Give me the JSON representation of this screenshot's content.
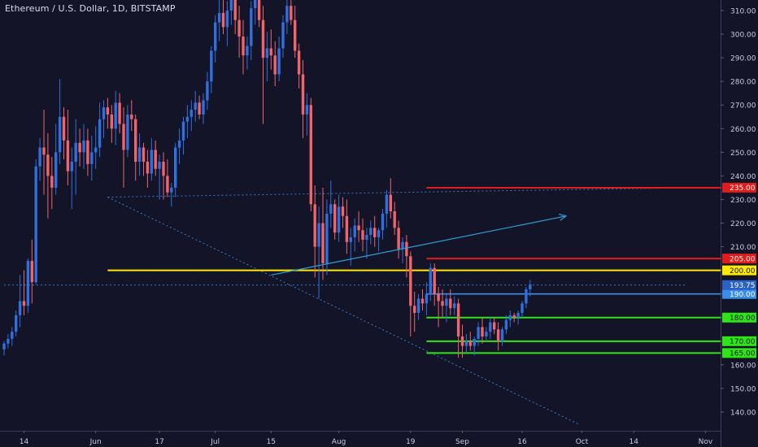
{
  "header": {
    "title": "Ethereum / U.S. Dollar, 1D, BITSTAMP"
  },
  "colors": {
    "background": "#131428",
    "up_candle": "#2f6fde",
    "down_candle": "#f0646a",
    "axis_text": "#c9ccd9",
    "red_level": "#e21b1b",
    "yellow_level": "#ffea00",
    "green_level": "#2ee615",
    "blue_level": "#3a8eea",
    "trend_arrow": "#2d9fd8"
  },
  "chart_data": {
    "type": "candlestick",
    "title": "Ethereum / U.S. Dollar, 1D, BITSTAMP",
    "y_axis": {
      "range": [
        135,
        314
      ],
      "ticks": [
        140,
        150,
        160,
        170,
        180,
        190,
        200,
        210,
        220,
        230,
        240,
        250,
        260,
        270,
        280,
        290,
        300,
        310
      ],
      "tick_labels": [
        "140.00",
        "150.00",
        "160.00",
        "170.00",
        "180.00",
        "190.00",
        "200.00",
        "210.00",
        "220.00",
        "230.00",
        "240.00",
        "250.00",
        "260.00",
        "270.00",
        "280.00",
        "290.00",
        "300.00",
        "310.00"
      ]
    },
    "x_axis": {
      "start_date": "2019-05-09",
      "end_date": "2019-11-05",
      "ticks": [
        {
          "date": "2019-05-14",
          "label": "14"
        },
        {
          "date": "2019-06-01",
          "label": "Jun"
        },
        {
          "date": "2019-06-17",
          "label": "17"
        },
        {
          "date": "2019-07-01",
          "label": "Jul"
        },
        {
          "date": "2019-07-15",
          "label": "15"
        },
        {
          "date": "2019-08-01",
          "label": "Aug"
        },
        {
          "date": "2019-08-19",
          "label": "19"
        },
        {
          "date": "2019-09-01",
          "label": "Sep"
        },
        {
          "date": "2019-09-16",
          "label": "16"
        },
        {
          "date": "2019-10-01",
          "label": "Oct"
        },
        {
          "date": "2019-10-14",
          "label": "14"
        },
        {
          "date": "2019-11-01",
          "label": "Nov"
        }
      ]
    },
    "candles_start_date": "2019-05-09",
    "candles": [
      [
        166.5,
        170,
        164,
        169
      ],
      [
        169,
        173,
        167,
        171
      ],
      [
        171,
        176,
        168,
        174
      ],
      [
        174,
        183,
        172,
        181
      ],
      [
        181,
        198,
        176,
        187
      ],
      [
        187,
        200,
        181,
        185
      ],
      [
        185,
        205,
        182,
        204
      ],
      [
        204,
        213,
        186,
        195
      ],
      [
        195,
        247,
        194,
        244
      ],
      [
        244,
        256,
        238,
        252
      ],
      [
        252,
        268,
        232,
        249
      ],
      [
        249,
        258,
        222,
        240
      ],
      [
        240,
        248,
        226,
        235
      ],
      [
        235,
        262,
        232,
        250
      ],
      [
        250,
        281,
        245,
        265
      ],
      [
        265,
        269,
        247,
        255
      ],
      [
        255,
        268,
        236,
        242
      ],
      [
        242,
        252,
        226,
        246
      ],
      [
        246,
        264,
        232,
        254
      ],
      [
        254,
        260,
        244,
        250
      ],
      [
        250,
        262,
        243,
        255
      ],
      [
        255,
        260,
        240,
        245
      ],
      [
        245,
        257,
        238,
        250
      ],
      [
        250,
        261,
        243,
        252
      ],
      [
        252,
        271,
        248,
        264
      ],
      [
        264,
        272,
        256,
        269
      ],
      [
        269,
        273,
        260,
        266
      ],
      [
        266,
        270,
        254,
        260
      ],
      [
        260,
        276,
        253,
        271
      ],
      [
        271,
        275,
        258,
        262
      ],
      [
        262,
        269,
        235,
        251
      ],
      [
        251,
        270,
        248,
        266
      ],
      [
        266,
        272,
        259,
        264
      ],
      [
        264,
        266,
        238,
        246
      ],
      [
        246,
        258,
        240,
        252
      ],
      [
        252,
        254,
        240,
        246
      ],
      [
        246,
        251,
        235,
        241
      ],
      [
        241,
        256,
        238,
        251
      ],
      [
        251,
        255,
        240,
        243
      ],
      [
        243,
        249,
        230,
        246
      ],
      [
        246,
        250,
        230,
        240
      ],
      [
        240,
        247,
        231,
        233
      ],
      [
        233,
        237,
        227,
        235
      ],
      [
        235,
        254,
        231,
        252
      ],
      [
        252,
        260,
        245,
        255
      ],
      [
        255,
        265,
        249,
        263
      ],
      [
        263,
        270,
        256,
        265
      ],
      [
        265,
        272,
        259,
        268
      ],
      [
        268,
        276,
        263,
        271
      ],
      [
        271,
        274,
        264,
        266
      ],
      [
        266,
        275,
        262,
        272
      ],
      [
        272,
        284,
        268,
        280
      ],
      [
        280,
        295,
        275,
        293
      ],
      [
        293,
        308,
        288,
        305
      ],
      [
        305,
        318,
        297,
        309
      ],
      [
        309,
        320,
        300,
        303
      ],
      [
        303,
        314,
        295,
        310
      ],
      [
        310,
        320,
        304,
        316
      ],
      [
        316,
        319,
        300,
        306
      ],
      [
        306,
        312,
        290,
        299
      ],
      [
        299,
        306,
        283,
        291
      ],
      [
        291,
        299,
        285,
        295
      ],
      [
        295,
        314,
        289,
        311
      ],
      [
        311,
        320,
        304,
        317
      ],
      [
        317,
        323,
        303,
        306
      ],
      [
        306,
        312,
        262,
        290
      ],
      [
        290,
        301,
        280,
        294
      ],
      [
        294,
        302,
        285,
        291
      ],
      [
        291,
        297,
        278,
        283
      ],
      [
        283,
        299,
        280,
        294
      ],
      [
        294,
        308,
        290,
        305
      ],
      [
        305,
        316,
        300,
        312
      ],
      [
        312,
        320,
        304,
        306
      ],
      [
        306,
        312,
        290,
        293
      ],
      [
        293,
        296,
        277,
        283
      ],
      [
        283,
        289,
        256,
        266
      ],
      [
        266,
        275,
        257,
        270
      ],
      [
        270,
        273,
        225,
        228
      ],
      [
        228,
        236,
        197,
        210
      ],
      [
        210,
        227,
        188,
        220
      ],
      [
        220,
        235,
        196,
        203
      ],
      [
        203,
        230,
        198,
        224
      ],
      [
        224,
        238,
        218,
        228
      ],
      [
        228,
        230,
        213,
        216
      ],
      [
        216,
        232,
        212,
        227
      ],
      [
        227,
        231,
        218,
        223
      ],
      [
        223,
        230,
        207,
        212
      ],
      [
        212,
        218,
        202,
        214
      ],
      [
        214,
        222,
        208,
        219
      ],
      [
        219,
        225,
        212,
        217
      ],
      [
        217,
        222,
        208,
        213
      ],
      [
        213,
        218,
        205,
        215
      ],
      [
        215,
        221,
        211,
        218
      ],
      [
        218,
        223,
        210,
        214
      ],
      [
        214,
        218,
        208,
        217
      ],
      [
        217,
        226,
        213,
        224
      ],
      [
        224,
        234,
        218,
        232
      ],
      [
        232,
        239,
        222,
        225
      ],
      [
        225,
        229,
        215,
        218
      ],
      [
        218,
        221,
        205,
        209
      ],
      [
        209,
        214,
        203,
        212
      ],
      [
        212,
        215,
        197,
        206
      ],
      [
        206,
        208,
        172,
        185
      ],
      [
        185,
        191,
        174,
        182
      ],
      [
        182,
        190,
        179,
        188
      ],
      [
        188,
        192,
        183,
        186
      ],
      [
        186,
        195,
        181,
        190
      ],
      [
        190,
        203,
        187,
        201
      ],
      [
        201,
        203,
        185,
        190
      ],
      [
        190,
        193,
        176,
        187
      ],
      [
        187,
        192,
        180,
        185
      ],
      [
        185,
        190,
        178,
        188
      ],
      [
        188,
        192,
        181,
        184
      ],
      [
        184,
        189,
        181,
        186
      ],
      [
        186,
        188,
        163,
        172
      ],
      [
        172,
        177,
        163,
        168
      ],
      [
        168,
        173,
        165,
        170
      ],
      [
        170,
        174,
        166,
        168
      ],
      [
        168,
        172,
        164,
        171
      ],
      [
        171,
        178,
        168,
        176
      ],
      [
        176,
        180,
        169,
        172
      ],
      [
        172,
        176,
        170,
        174
      ],
      [
        174,
        180,
        171,
        178
      ],
      [
        178,
        180,
        173,
        175
      ],
      [
        175,
        178,
        166,
        170
      ],
      [
        170,
        176,
        168,
        175
      ],
      [
        175,
        181,
        173,
        179
      ],
      [
        179,
        183,
        176,
        181
      ],
      [
        181,
        182,
        178,
        180
      ],
      [
        180,
        183,
        177,
        182
      ],
      [
        182,
        187,
        180,
        186
      ],
      [
        186,
        193,
        184,
        192
      ],
      [
        192,
        196,
        189,
        194
      ]
    ],
    "horizontal_levels": [
      {
        "price": 235,
        "color": "red",
        "label": "235.00",
        "from_date": "2019-08-23"
      },
      {
        "price": 205,
        "color": "red",
        "label": "205.00",
        "from_date": "2019-08-23"
      },
      {
        "price": 200,
        "color": "yellow",
        "label": "200.00",
        "from_date": "2019-06-04"
      },
      {
        "price": 190,
        "color": "blue",
        "label": "190.00",
        "from_date": "2019-08-23"
      },
      {
        "price": 180,
        "color": "green",
        "label": "180.00",
        "from_date": "2019-08-23"
      },
      {
        "price": 170,
        "color": "green",
        "label": "170.00",
        "from_date": "2019-08-23"
      },
      {
        "price": 165,
        "color": "green",
        "label": "165.00",
        "from_date": "2019-08-23"
      }
    ],
    "dotted_lines": [
      {
        "from": {
          "date": "2019-06-04",
          "price": 231
        },
        "to": {
          "date": "2019-10-28",
          "price": 235
        },
        "color": "blue"
      },
      {
        "from": {
          "date": "2019-06-04",
          "price": 231
        },
        "to": {
          "date": "2019-09-30",
          "price": 135
        },
        "color": "blue"
      },
      {
        "from": {
          "date": "2019-05-09",
          "price": 193.75
        },
        "to": {
          "date": "2019-10-27",
          "price": 193.75
        },
        "color": "blue"
      }
    ],
    "arrow": {
      "from": {
        "date": "2019-07-15",
        "price": 198
      },
      "to": {
        "date": "2019-09-27",
        "price": 223
      }
    },
    "last_price": {
      "price": 193.75,
      "label": "193.75"
    }
  }
}
